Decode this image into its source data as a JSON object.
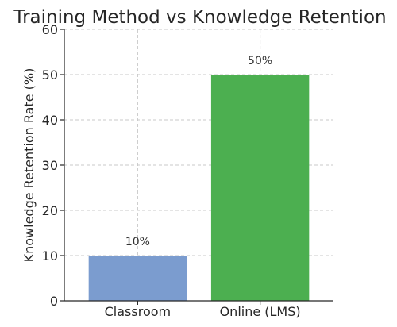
{
  "chart_data": {
    "type": "bar",
    "title": "Training Method vs Knowledge Retention",
    "xlabel": "",
    "ylabel": "Knowledge Retention Rate (%)",
    "categories": [
      "Classroom",
      "Online (LMS)"
    ],
    "values": [
      10,
      50
    ],
    "data_labels": [
      "10%",
      "50%"
    ],
    "colors": [
      "#7b9ccf",
      "#4caf50"
    ],
    "ylim": [
      0,
      60
    ],
    "yticks": [
      0,
      10,
      20,
      30,
      40,
      50,
      60
    ],
    "grid": true,
    "legend": "none"
  }
}
